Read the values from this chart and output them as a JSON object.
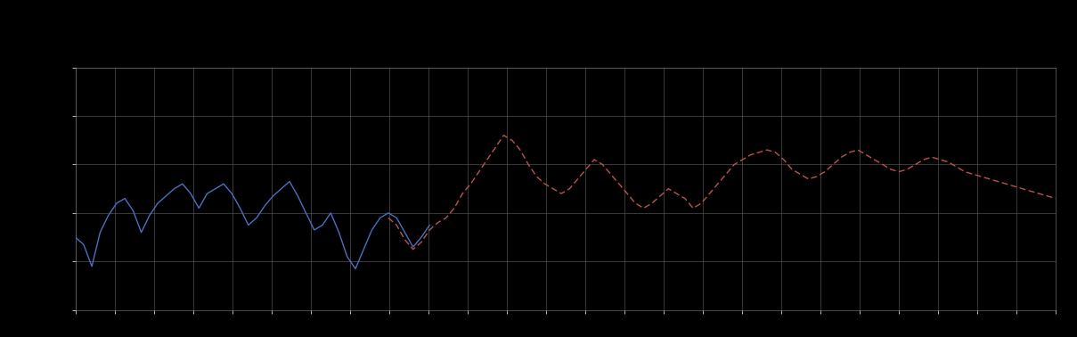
{
  "background_color": "#000000",
  "plot_bg_color": "#000000",
  "grid_color": "#666666",
  "text_color": "#ffffff",
  "blue_color": "#4472c4",
  "red_color": "#c0504d",
  "legend_label_blue": "",
  "legend_label_red": "",
  "figsize": [
    12.09,
    3.78
  ],
  "dpi": 100,
  "xlim": [
    0,
    119
  ],
  "ylim_bottom": 0.0,
  "ylim_top": 5.0,
  "ytick_count": 5,
  "xtick_count": 25,
  "blue_x": [
    0,
    1,
    2,
    3,
    4,
    5,
    6,
    7,
    8,
    9,
    10,
    11,
    12,
    13,
    14,
    15,
    16,
    17,
    18,
    19,
    20,
    21,
    22,
    23,
    24,
    25,
    26,
    27,
    28,
    29,
    30,
    31,
    32,
    33,
    34,
    35,
    36,
    37,
    38,
    39,
    40,
    41,
    42,
    43
  ],
  "blue_y": [
    1.5,
    1.35,
    0.9,
    1.6,
    1.95,
    2.2,
    2.3,
    2.05,
    1.6,
    1.95,
    2.2,
    2.35,
    2.5,
    2.6,
    2.4,
    2.1,
    2.4,
    2.5,
    2.6,
    2.4,
    2.1,
    1.75,
    1.9,
    2.15,
    2.35,
    2.5,
    2.65,
    2.35,
    2.0,
    1.65,
    1.75,
    2.0,
    1.6,
    1.1,
    0.85,
    1.25,
    1.65,
    1.9,
    2.0,
    1.9,
    1.6,
    1.3,
    1.5,
    1.75
  ],
  "red_x": [
    38,
    39,
    40,
    41,
    42,
    43,
    44,
    45,
    46,
    47,
    48,
    49,
    50,
    51,
    52,
    53,
    54,
    55,
    56,
    57,
    58,
    59,
    60,
    61,
    62,
    63,
    64,
    65,
    66,
    67,
    68,
    69,
    70,
    71,
    72,
    73,
    74,
    75,
    76,
    77,
    78,
    79,
    80,
    81,
    82,
    83,
    84,
    85,
    86,
    87,
    88,
    89,
    90,
    91,
    92,
    93,
    94,
    95,
    96,
    97,
    98,
    99,
    100,
    101,
    102,
    103,
    104,
    105,
    106,
    107,
    108,
    109,
    110,
    111,
    112,
    113,
    114,
    115,
    116,
    117,
    118,
    119
  ],
  "red_y": [
    1.9,
    1.75,
    1.45,
    1.25,
    1.4,
    1.65,
    1.8,
    1.9,
    2.1,
    2.4,
    2.6,
    2.85,
    3.1,
    3.35,
    3.6,
    3.5,
    3.3,
    3.0,
    2.75,
    2.6,
    2.5,
    2.4,
    2.5,
    2.7,
    2.9,
    3.1,
    3.0,
    2.8,
    2.6,
    2.4,
    2.2,
    2.1,
    2.2,
    2.35,
    2.5,
    2.4,
    2.3,
    2.1,
    2.2,
    2.4,
    2.6,
    2.8,
    3.0,
    3.1,
    3.2,
    3.25,
    3.3,
    3.25,
    3.1,
    2.9,
    2.8,
    2.7,
    2.75,
    2.85,
    3.0,
    3.15,
    3.25,
    3.3,
    3.2,
    3.1,
    3.0,
    2.9,
    2.85,
    2.9,
    3.0,
    3.1,
    3.15,
    3.1,
    3.05,
    2.95,
    2.85,
    2.8,
    2.75,
    2.7,
    2.65,
    2.6,
    2.55,
    2.5,
    2.45,
    2.4,
    2.35,
    2.3
  ]
}
